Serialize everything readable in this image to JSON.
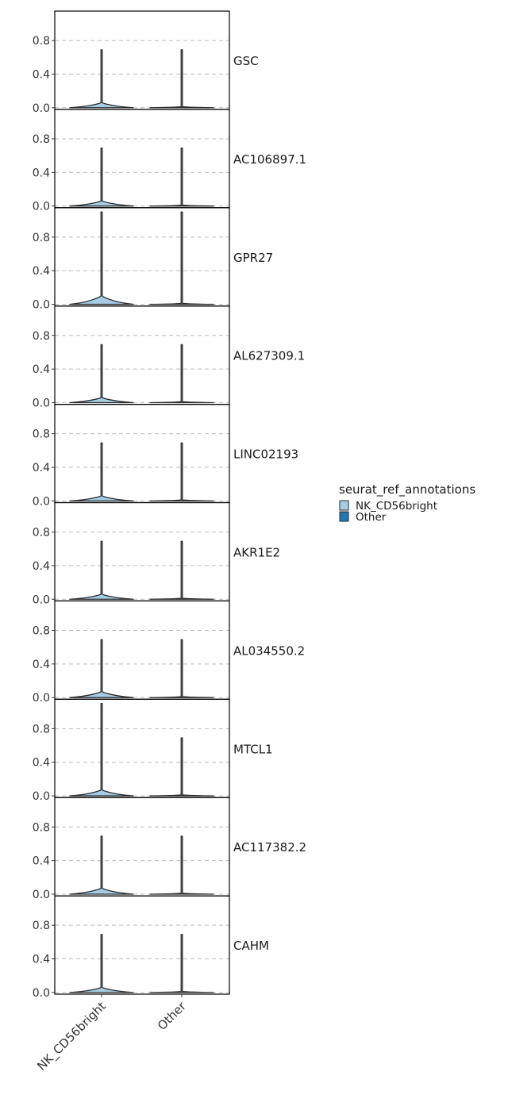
{
  "chart_data": {
    "type": "violin",
    "title": "",
    "xlabel": "",
    "ylabel": "",
    "categories": [
      "NK_CD56bright",
      "Other"
    ],
    "y_ticks": [
      0.0,
      0.4,
      0.8
    ],
    "y_tick_labels": [
      "0.0",
      "0.4",
      "0.8"
    ],
    "ylim": [
      -0.02,
      1.15
    ],
    "grid": "horizontal dashed",
    "legend": {
      "title": "seurat_ref_annotations",
      "position": "right",
      "entries": [
        {
          "label": "NK_CD56bright",
          "color": "#a6cde3"
        },
        {
          "label": "Other",
          "color": "#1f77b4"
        }
      ]
    },
    "panels": [
      {
        "gene": "GSC",
        "series": [
          {
            "group": "NK_CD56bright",
            "max": 0.69,
            "bulge": 0.06
          },
          {
            "group": "Other",
            "max": 0.69,
            "bulge": 0.01
          }
        ]
      },
      {
        "gene": "AC106897.1",
        "series": [
          {
            "group": "NK_CD56bright",
            "max": 0.69,
            "bulge": 0.06
          },
          {
            "group": "Other",
            "max": 0.69,
            "bulge": 0.01
          }
        ]
      },
      {
        "gene": "GPR27",
        "series": [
          {
            "group": "NK_CD56bright",
            "max": 1.1,
            "bulge": 0.1
          },
          {
            "group": "Other",
            "max": 1.1,
            "bulge": 0.01
          }
        ]
      },
      {
        "gene": "AL627309.1",
        "series": [
          {
            "group": "NK_CD56bright",
            "max": 0.69,
            "bulge": 0.06
          },
          {
            "group": "Other",
            "max": 0.69,
            "bulge": 0.01
          }
        ]
      },
      {
        "gene": "LINC02193",
        "series": [
          {
            "group": "NK_CD56bright",
            "max": 0.69,
            "bulge": 0.06
          },
          {
            "group": "Other",
            "max": 0.69,
            "bulge": 0.01
          }
        ]
      },
      {
        "gene": "AKR1E2",
        "series": [
          {
            "group": "NK_CD56bright",
            "max": 0.69,
            "bulge": 0.06
          },
          {
            "group": "Other",
            "max": 0.69,
            "bulge": 0.01
          }
        ]
      },
      {
        "gene": "AL034550.2",
        "series": [
          {
            "group": "NK_CD56bright",
            "max": 0.69,
            "bulge": 0.07
          },
          {
            "group": "Other",
            "max": 0.69,
            "bulge": 0.01
          }
        ]
      },
      {
        "gene": "MTCL1",
        "series": [
          {
            "group": "NK_CD56bright",
            "max": 1.1,
            "bulge": 0.07
          },
          {
            "group": "Other",
            "max": 0.69,
            "bulge": 0.01
          }
        ]
      },
      {
        "gene": "AC117382.2",
        "series": [
          {
            "group": "NK_CD56bright",
            "max": 0.69,
            "bulge": 0.07
          },
          {
            "group": "Other",
            "max": 0.69,
            "bulge": 0.01
          }
        ]
      },
      {
        "gene": "CAHM",
        "series": [
          {
            "group": "NK_CD56bright",
            "max": 0.69,
            "bulge": 0.06
          },
          {
            "group": "Other",
            "max": 0.69,
            "bulge": 0.01
          }
        ]
      }
    ]
  }
}
